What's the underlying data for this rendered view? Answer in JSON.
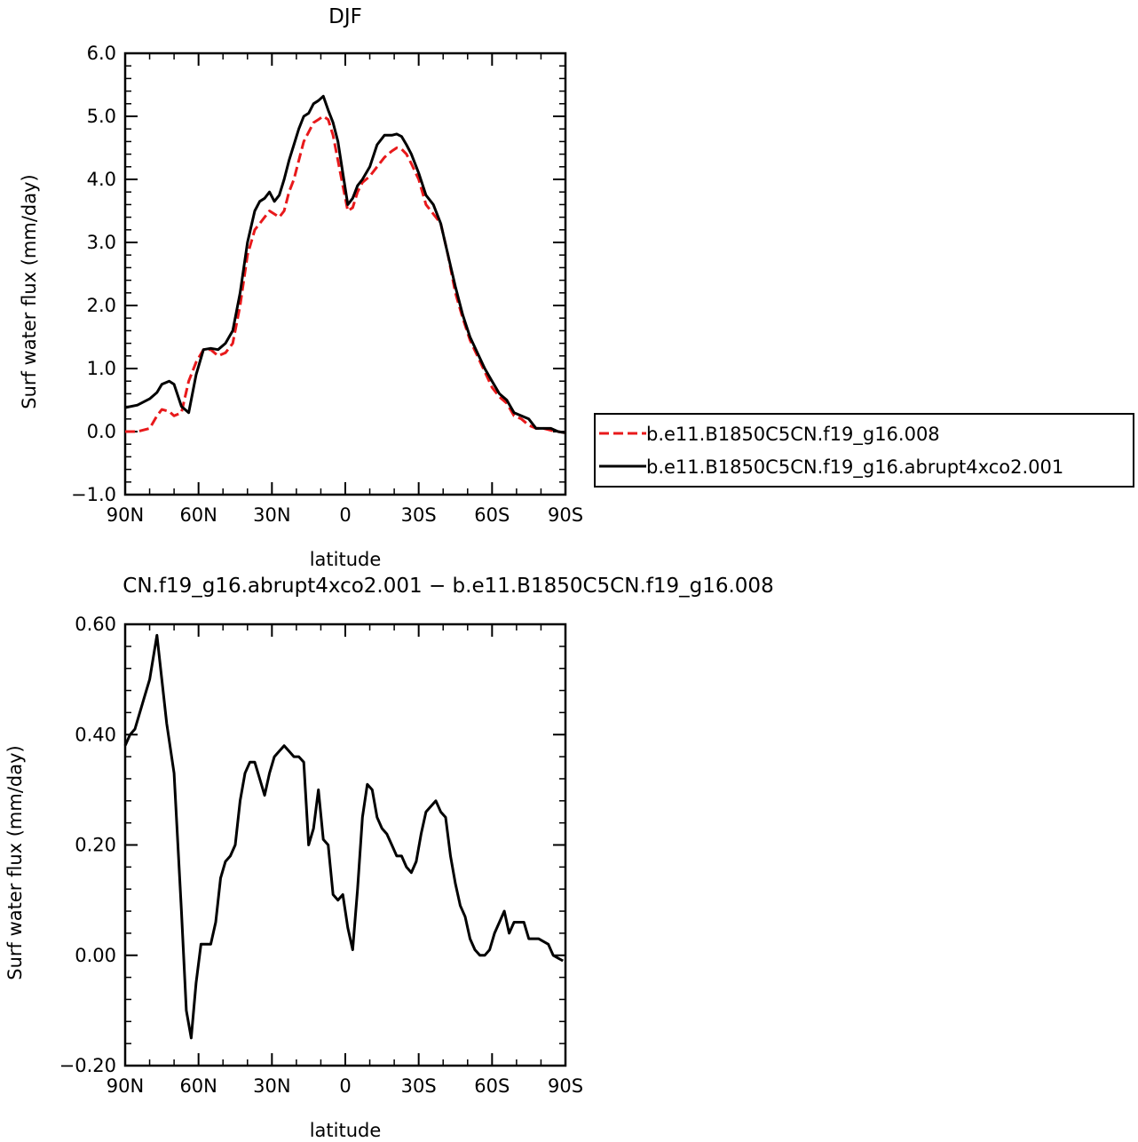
{
  "chart_data": [
    {
      "type": "line",
      "title": "DJF",
      "xlabel": "latitude",
      "ylabel": "Surf water flux (mm/day)",
      "xlim": [
        90,
        -90
      ],
      "ylim": [
        -1.0,
        6.0
      ],
      "xticks": [
        90,
        60,
        30,
        0,
        -30,
        -60,
        -90
      ],
      "xtick_labels": [
        "90N",
        "60N",
        "30N",
        "0",
        "30S",
        "60S",
        "90S"
      ],
      "yticks": [
        -1.0,
        0.0,
        1.0,
        2.0,
        3.0,
        4.0,
        5.0,
        6.0
      ],
      "ytick_labels": [
        "−1.0",
        "0.0",
        "1.0",
        "2.0",
        "3.0",
        "4.0",
        "5.0",
        "6.0"
      ],
      "grid": false,
      "legend_position": "right",
      "series": [
        {
          "name": "b.e11.B1850C5CN.f19_g16.008",
          "color": "#e8191b",
          "dash": "dashed",
          "x": [
            90,
            85,
            80,
            77,
            75,
            72,
            70,
            67,
            64,
            61,
            58,
            55,
            52,
            49,
            46,
            43,
            40,
            37,
            35,
            33,
            31,
            29,
            27,
            25,
            23,
            21,
            19,
            17,
            15,
            13,
            11,
            9,
            7,
            5,
            3,
            1,
            -1,
            -3,
            -5,
            -7,
            -10,
            -13,
            -16,
            -19,
            -21,
            -23,
            -25,
            -27,
            -30,
            -33,
            -36,
            -39,
            -42,
            -45,
            -48,
            -51,
            -54,
            -57,
            -60,
            -63,
            -66,
            -69,
            -72,
            -75,
            -78,
            -81,
            -84,
            -87,
            -90
          ],
          "y": [
            0.0,
            0.0,
            0.05,
            0.25,
            0.35,
            0.32,
            0.25,
            0.3,
            0.8,
            1.1,
            1.3,
            1.3,
            1.2,
            1.25,
            1.4,
            2.0,
            2.8,
            3.2,
            3.3,
            3.4,
            3.5,
            3.45,
            3.4,
            3.5,
            3.8,
            4.0,
            4.3,
            4.6,
            4.75,
            4.9,
            4.95,
            5.0,
            4.95,
            4.7,
            4.3,
            3.9,
            3.5,
            3.55,
            3.8,
            3.95,
            4.05,
            4.2,
            4.35,
            4.45,
            4.5,
            4.48,
            4.4,
            4.25,
            4.0,
            3.6,
            3.45,
            3.3,
            2.8,
            2.2,
            1.8,
            1.45,
            1.2,
            0.95,
            0.7,
            0.55,
            0.45,
            0.25,
            0.2,
            0.1,
            0.05,
            0.05,
            0.02,
            0.0,
            -0.02
          ]
        },
        {
          "name": "b.e11.B1850C5CN.f19_g16.abrupt4xco2.001",
          "color": "#000000",
          "dash": "solid",
          "x": [
            90,
            85,
            80,
            77,
            75,
            72,
            70,
            67,
            64,
            61,
            58,
            55,
            52,
            49,
            46,
            43,
            40,
            37,
            35,
            33,
            31,
            29,
            27,
            25,
            23,
            21,
            19,
            17,
            15,
            13,
            11,
            9,
            7,
            5,
            3,
            1,
            -1,
            -3,
            -5,
            -7,
            -10,
            -13,
            -16,
            -19,
            -21,
            -23,
            -25,
            -27,
            -30,
            -33,
            -36,
            -39,
            -42,
            -45,
            -48,
            -51,
            -54,
            -57,
            -60,
            -63,
            -66,
            -69,
            -72,
            -75,
            -78,
            -81,
            -84,
            -87,
            -90
          ],
          "y": [
            0.38,
            0.42,
            0.52,
            0.62,
            0.75,
            0.8,
            0.75,
            0.4,
            0.3,
            0.9,
            1.3,
            1.32,
            1.3,
            1.4,
            1.6,
            2.2,
            3.0,
            3.5,
            3.65,
            3.7,
            3.8,
            3.65,
            3.75,
            4.0,
            4.3,
            4.55,
            4.8,
            5.0,
            5.05,
            5.2,
            5.25,
            5.32,
            5.1,
            4.9,
            4.6,
            4.1,
            3.6,
            3.7,
            3.9,
            4.0,
            4.2,
            4.55,
            4.7,
            4.7,
            4.72,
            4.68,
            4.55,
            4.4,
            4.1,
            3.75,
            3.6,
            3.3,
            2.8,
            2.3,
            1.85,
            1.5,
            1.25,
            1.0,
            0.8,
            0.6,
            0.5,
            0.3,
            0.25,
            0.2,
            0.05,
            0.05,
            0.05,
            0.0,
            -0.02
          ]
        }
      ]
    },
    {
      "type": "line",
      "title": "CN.f19_g16.abrupt4xco2.001 − b.e11.B1850C5CN.f19_g16.008",
      "xlabel": "latitude",
      "ylabel": "Surf water flux (mm/day)",
      "xlim": [
        90,
        -90
      ],
      "ylim": [
        -0.2,
        0.6
      ],
      "xticks": [
        90,
        60,
        30,
        0,
        -30,
        -60,
        -90
      ],
      "xtick_labels": [
        "90N",
        "60N",
        "30N",
        "0",
        "30S",
        "60S",
        "90S"
      ],
      "yticks": [
        -0.2,
        0.0,
        0.2,
        0.4,
        0.6
      ],
      "ytick_labels": [
        "−0.20",
        "0.00",
        "0.20",
        "0.40",
        "0.60"
      ],
      "grid": false,
      "series": [
        {
          "color": "#000000",
          "dash": "solid",
          "x": [
            90,
            88,
            86,
            84,
            82,
            80,
            77,
            75,
            73,
            70,
            67,
            65,
            63,
            61,
            59,
            57,
            55,
            53,
            51,
            49,
            47,
            45,
            43,
            41,
            39,
            37,
            35,
            33,
            31,
            29,
            27,
            25,
            23,
            21,
            19,
            17,
            15,
            13,
            11,
            9,
            7,
            5,
            3,
            1,
            -1,
            -3,
            -5,
            -7,
            -9,
            -11,
            -13,
            -15,
            -17,
            -19,
            -21,
            -23,
            -25,
            -27,
            -29,
            -31,
            -33,
            -35,
            -37,
            -39,
            -41,
            -43,
            -45,
            -47,
            -49,
            -51,
            -53,
            -55,
            -57,
            -59,
            -61,
            -63,
            -65,
            -67,
            -69,
            -71,
            -73,
            -75,
            -77,
            -79,
            -81,
            -83,
            -85,
            -87,
            -89
          ],
          "y": [
            0.38,
            0.4,
            0.41,
            0.44,
            0.47,
            0.5,
            0.58,
            0.5,
            0.42,
            0.33,
            0.08,
            -0.1,
            -0.15,
            -0.05,
            0.02,
            0.02,
            0.02,
            0.06,
            0.14,
            0.17,
            0.18,
            0.2,
            0.28,
            0.33,
            0.35,
            0.35,
            0.32,
            0.29,
            0.33,
            0.36,
            0.37,
            0.38,
            0.37,
            0.36,
            0.36,
            0.35,
            0.2,
            0.23,
            0.3,
            0.21,
            0.2,
            0.11,
            0.1,
            0.11,
            0.05,
            0.01,
            0.12,
            0.25,
            0.31,
            0.3,
            0.25,
            0.23,
            0.22,
            0.2,
            0.18,
            0.18,
            0.16,
            0.15,
            0.17,
            0.22,
            0.26,
            0.27,
            0.28,
            0.26,
            0.25,
            0.18,
            0.13,
            0.09,
            0.07,
            0.03,
            0.01,
            0.0,
            0.0,
            0.01,
            0.04,
            0.06,
            0.08,
            0.04,
            0.06,
            0.06,
            0.06,
            0.03,
            0.03,
            0.03,
            0.025,
            0.02,
            0.0,
            -0.005,
            -0.01
          ]
        }
      ]
    }
  ]
}
